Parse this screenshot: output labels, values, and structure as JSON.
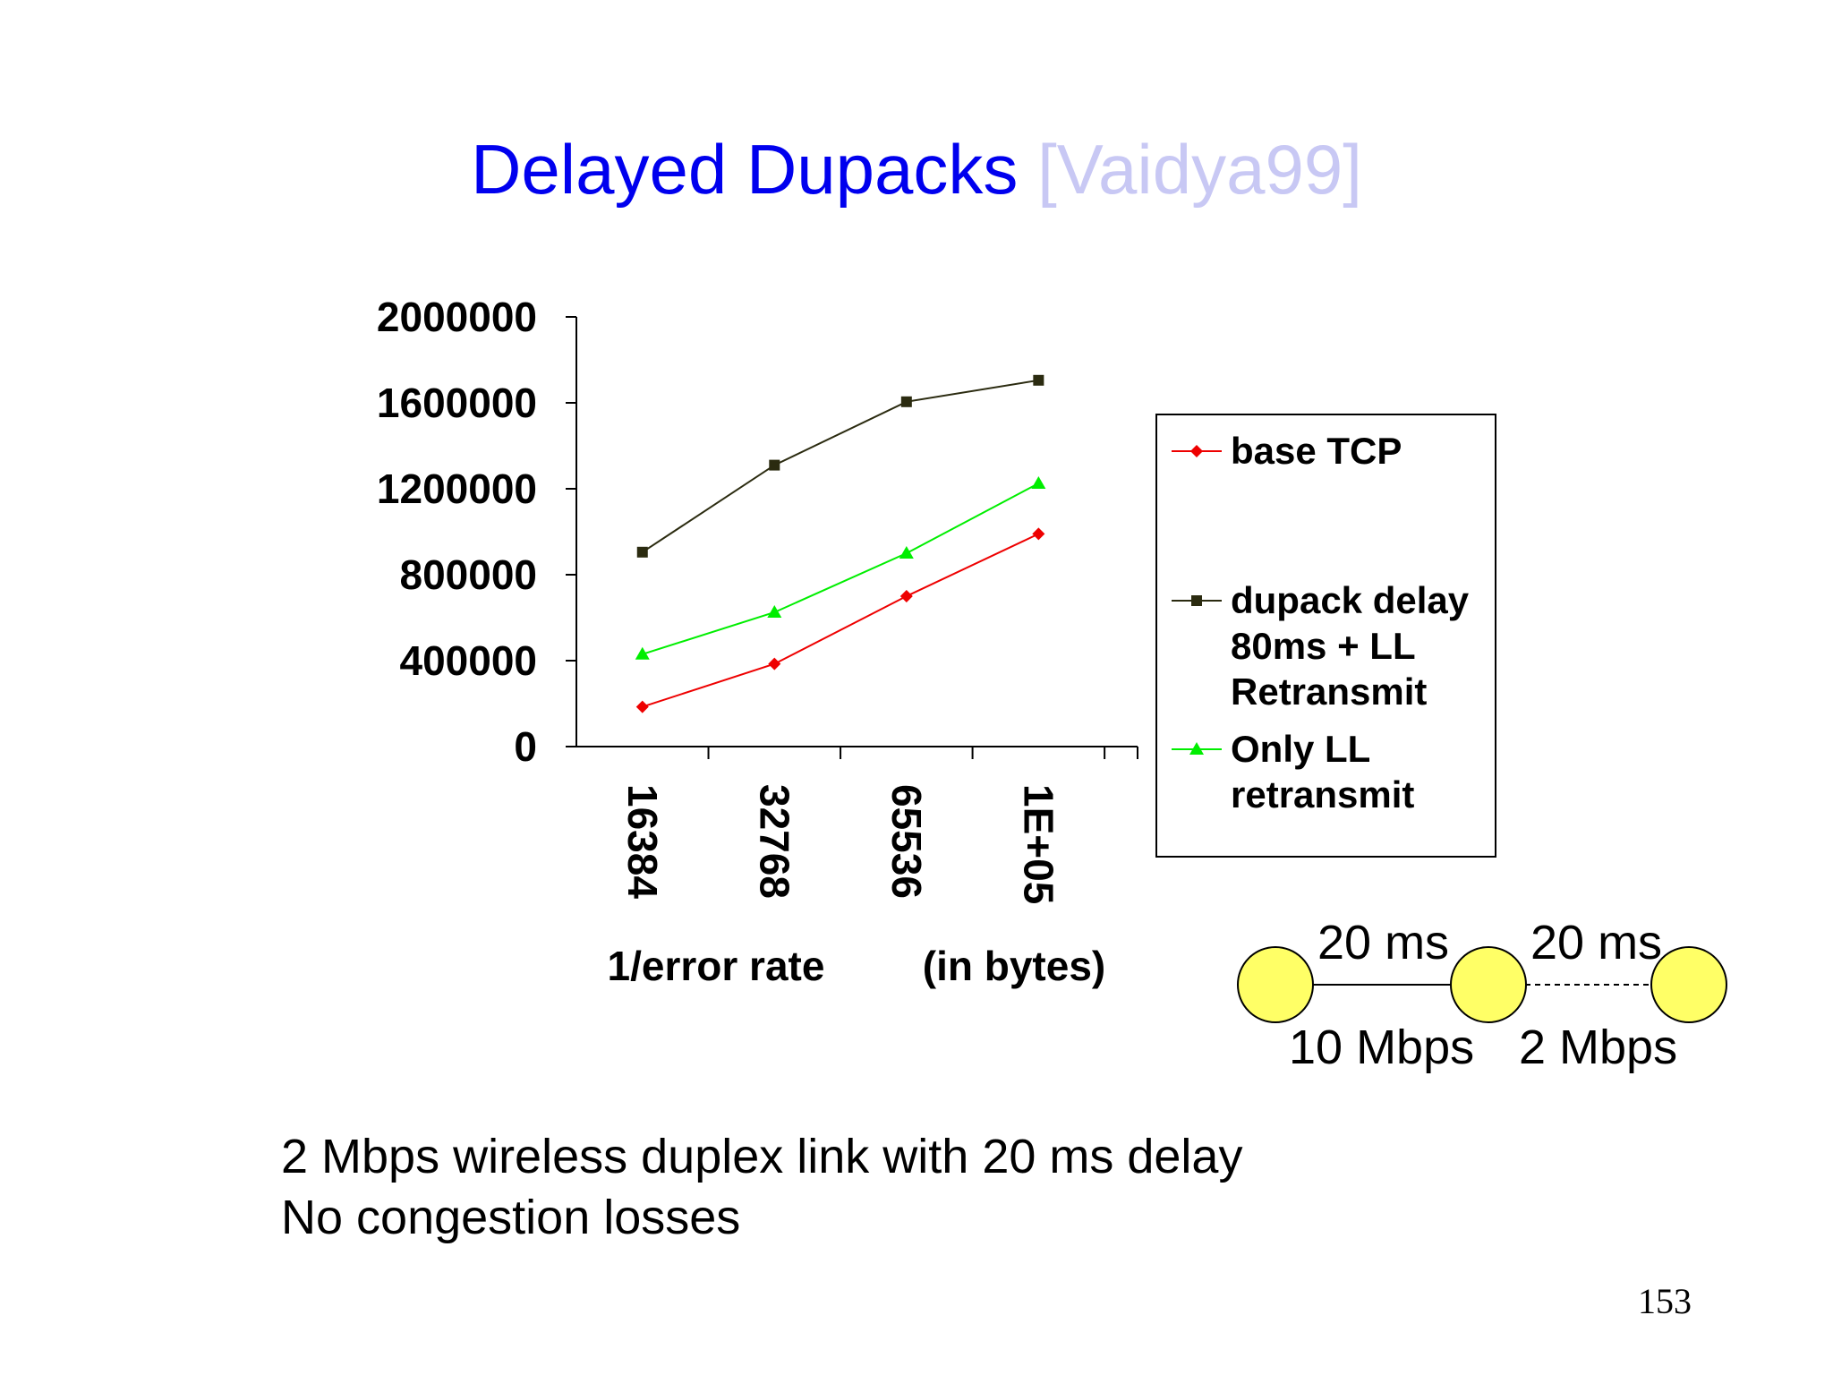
{
  "slide": {
    "title": "Delayed Dupacks",
    "title_reference": "[Vaidya99]",
    "title_color": "#0000ee",
    "reference_color": "#c8c8f4",
    "footnote_lines": [
      "2 Mbps wireless duplex link with 20 ms delay",
      "No congestion losses"
    ],
    "page_number": "153"
  },
  "chart_data": {
    "type": "line",
    "categories": [
      "16384",
      "32768",
      "65536",
      "1E+05"
    ],
    "xlabel_parts": [
      "1/error rate",
      "(in bytes)"
    ],
    "ylabel": "",
    "ylim": [
      0,
      2000000
    ],
    "yticks": [
      "0",
      "400000",
      "800000",
      "1200000",
      "1600000",
      "2000000"
    ],
    "ytick_values": [
      0,
      400000,
      800000,
      1200000,
      1600000,
      2000000
    ],
    "grid": false,
    "legend_position": "right",
    "series": [
      {
        "name": "base TCP",
        "values": [
          185000,
          385000,
          700000,
          990000
        ],
        "color": "#ee0000",
        "marker": "diamond"
      },
      {
        "name": "dupack delay 80ms + LL Retransmit",
        "values": [
          905000,
          1310000,
          1605000,
          1705000
        ],
        "color": "#2b2b10",
        "marker": "square"
      },
      {
        "name": "Only LL retransmit",
        "values": [
          430000,
          625000,
          900000,
          1225000
        ],
        "color": "#00ee00",
        "marker": "triangle"
      }
    ]
  },
  "network_diagram": {
    "node_color": "#ffff66",
    "link1_delay": "20 ms",
    "link1_bandwidth": "10 Mbps",
    "link2_delay": "20 ms",
    "link2_bandwidth": "2 Mbps"
  }
}
